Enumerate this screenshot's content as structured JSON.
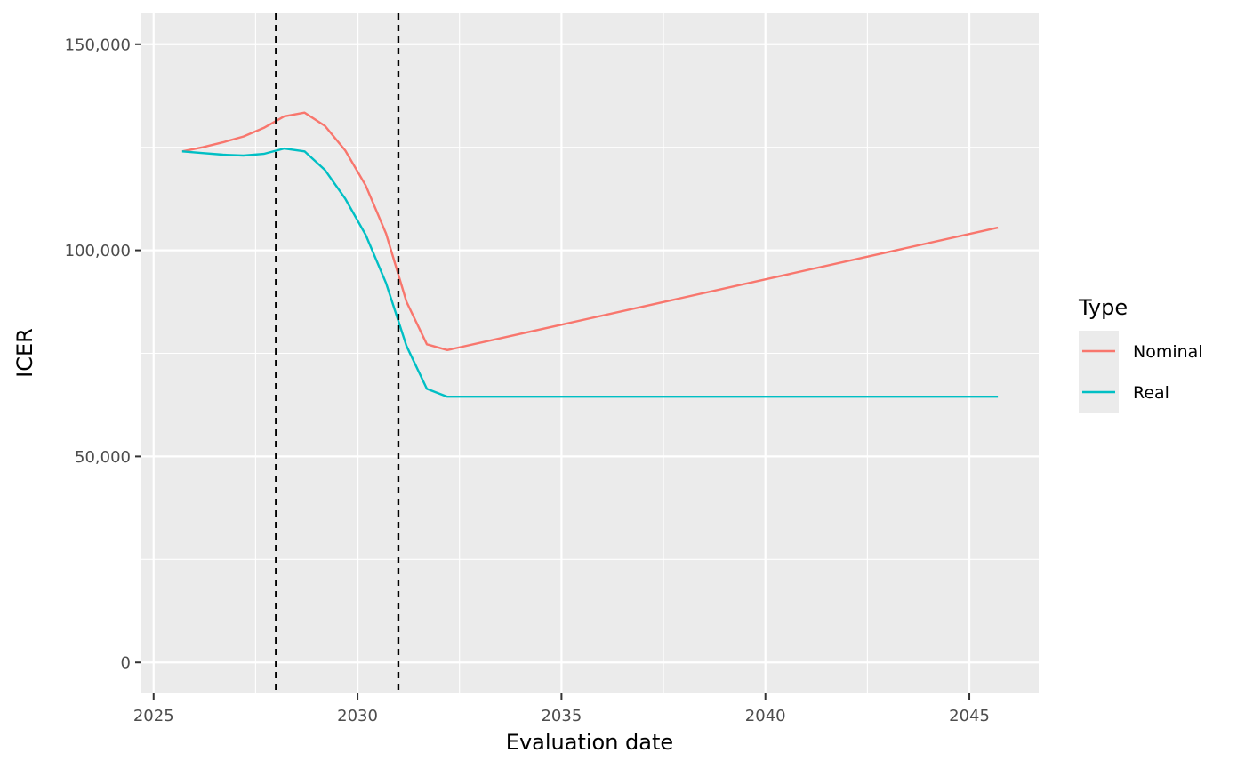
{
  "chart_data": {
    "type": "line",
    "title": "",
    "xlabel": "Evaluation date",
    "ylabel": "ICER",
    "x_ticks": [
      2025,
      2030,
      2035,
      2040,
      2045
    ],
    "x_tick_labels": [
      "2025",
      "2030",
      "2035",
      "2040",
      "2045"
    ],
    "y_ticks": [
      0,
      50000,
      100000,
      150000
    ],
    "y_tick_labels": [
      "0",
      "50,000",
      "100,000",
      "150,000"
    ],
    "xlim": [
      2024.7,
      2046.7
    ],
    "ylim": [
      -7500,
      157500
    ],
    "grid": true,
    "legend": {
      "title": "Type",
      "position": "right"
    },
    "vlines": [
      {
        "x": 2028.0,
        "style": "dashed",
        "color": "#000000"
      },
      {
        "x": 2031.0,
        "style": "dashed",
        "color": "#000000"
      }
    ],
    "series": [
      {
        "name": "Nominal",
        "color": "#F8766D",
        "x": [
          2025.7,
          2026.2,
          2026.7,
          2027.2,
          2027.7,
          2028.2,
          2028.7,
          2029.2,
          2029.7,
          2030.2,
          2030.7,
          2031.2,
          2031.7,
          2032.2,
          2045.7
        ],
        "y": [
          124000,
          125000,
          126200,
          127600,
          129700,
          132500,
          133400,
          130200,
          124200,
          115700,
          104000,
          87500,
          77200,
          75800,
          105500
        ]
      },
      {
        "name": "Real",
        "color": "#00BFC4",
        "x": [
          2025.7,
          2026.2,
          2026.7,
          2027.2,
          2027.7,
          2028.2,
          2028.7,
          2029.2,
          2029.7,
          2030.2,
          2030.7,
          2031.2,
          2031.7,
          2032.2,
          2045.7
        ],
        "y": [
          124000,
          123600,
          123200,
          123000,
          123400,
          124700,
          124000,
          119500,
          112500,
          103700,
          92000,
          76800,
          66400,
          64500,
          64500
        ]
      }
    ]
  }
}
